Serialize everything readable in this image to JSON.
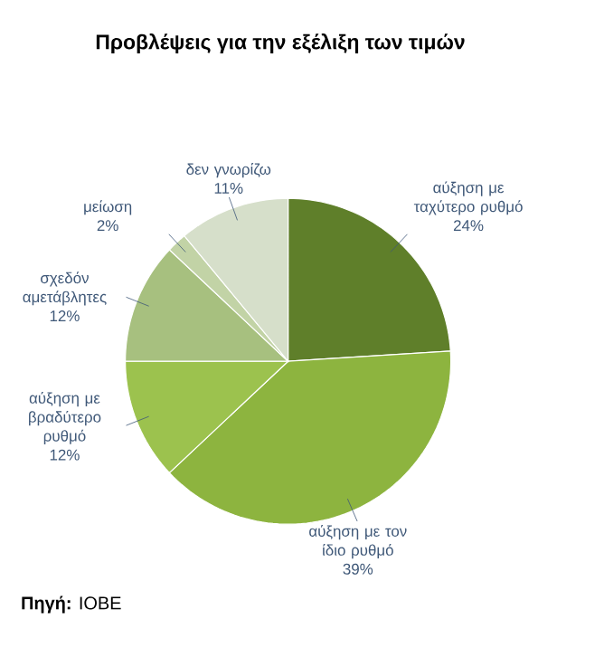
{
  "chart_data": {
    "type": "pie",
    "title": "Προβλέψεις για την εξέλιξη των τιμών",
    "categories": [
      "αύξηση με ταχύτερο ρυθμό",
      "αύξηση με τον ίδιο ρυθμό",
      "αύξηση με βραδύτερο ρυθμό",
      "σχεδόν αμετάβλητες",
      "μείωση",
      "δεν γνωρίζω"
    ],
    "values": [
      24,
      39,
      12,
      12,
      2,
      11
    ],
    "colors": [
      "#5f7f2a",
      "#8db43f",
      "#9cc24e",
      "#a7c07f",
      "#c2d3a6",
      "#d6dfca"
    ],
    "value_labels": [
      "24%",
      "39%",
      "12%",
      "12%",
      "2%",
      "11%"
    ],
    "annotations": [
      "**Πηγή:** IOBE"
    ]
  }
}
